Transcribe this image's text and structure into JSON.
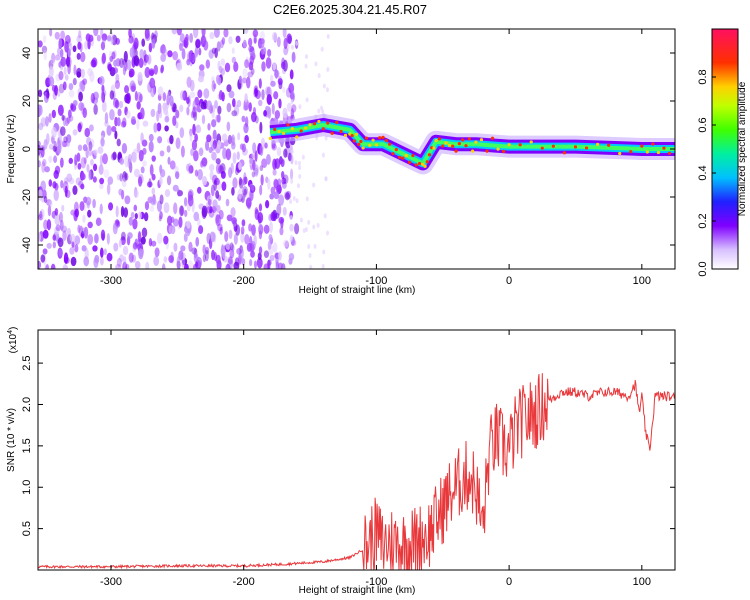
{
  "title": "C2E6.2025.304.21.45.R07",
  "chart_data": [
    {
      "type": "heatmap",
      "name": "spectrogram",
      "xlabel": "Height of straight line (km)",
      "ylabel": "Frequency (Hz)",
      "xlim": [
        -355,
        125
      ],
      "ylim": [
        -50,
        50
      ],
      "xticks": [
        -300,
        -200,
        -100,
        0,
        100
      ],
      "yticks": [
        -40,
        -20,
        0,
        20,
        40
      ],
      "colorbar": {
        "label": "Normalized spectral amplitude",
        "range": [
          0,
          1
        ],
        "ticks": [
          0.0,
          0.2,
          0.4,
          0.6,
          0.8
        ]
      },
      "carrier_track": [
        {
          "x": -180,
          "y": 7
        },
        {
          "x": -160,
          "y": 8
        },
        {
          "x": -140,
          "y": 10
        },
        {
          "x": -120,
          "y": 8
        },
        {
          "x": -110,
          "y": 2
        },
        {
          "x": -95,
          "y": 2
        },
        {
          "x": -80,
          "y": -2
        },
        {
          "x": -65,
          "y": -6
        },
        {
          "x": -55,
          "y": 3
        },
        {
          "x": -40,
          "y": 2
        },
        {
          "x": -25,
          "y": 2
        },
        {
          "x": 0,
          "y": 1
        },
        {
          "x": 50,
          "y": 1
        },
        {
          "x": 100,
          "y": 0
        },
        {
          "x": 125,
          "y": 0
        }
      ]
    },
    {
      "type": "line",
      "name": "snr",
      "xlabel": "Height of straight line (km)",
      "ylabel": "SNR (10 * v/v)",
      "exponent_label": "(x10",
      "exponent_power": "4",
      "exponent_close": ")",
      "xlim": [
        -355,
        125
      ],
      "ylim": [
        0,
        29000
      ],
      "xticks": [
        -300,
        -200,
        -100,
        0,
        100
      ],
      "yticks": [
        0.5,
        1.0,
        1.5,
        2.0,
        2.5
      ],
      "series": [
        {
          "name": "SNR",
          "color": "#e8383b",
          "x": [
            -355,
            -300,
            -250,
            -200,
            -170,
            -140,
            -120,
            -110,
            -100,
            -95,
            -90,
            -80,
            -70,
            -60,
            -55,
            -50,
            -45,
            -40,
            -35,
            -30,
            -25,
            -20,
            -15,
            -10,
            -5,
            0,
            5,
            10,
            20,
            30,
            40,
            50,
            60,
            70,
            80,
            90,
            95,
            98,
            100,
            103,
            106,
            110,
            120,
            125
          ],
          "y": [
            400,
            400,
            500,
            500,
            700,
            1000,
            1500,
            2500,
            4500,
            3000,
            3500,
            3000,
            3500,
            4500,
            6000,
            7500,
            9000,
            10000,
            11000,
            11500,
            10000,
            5000,
            14000,
            16000,
            15000,
            14500,
            17000,
            18000,
            19000,
            20500,
            21500,
            21500,
            21000,
            21500,
            21500,
            21000,
            22500,
            19000,
            21000,
            16500,
            14500,
            21000,
            21000,
            20800
          ]
        }
      ]
    }
  ]
}
